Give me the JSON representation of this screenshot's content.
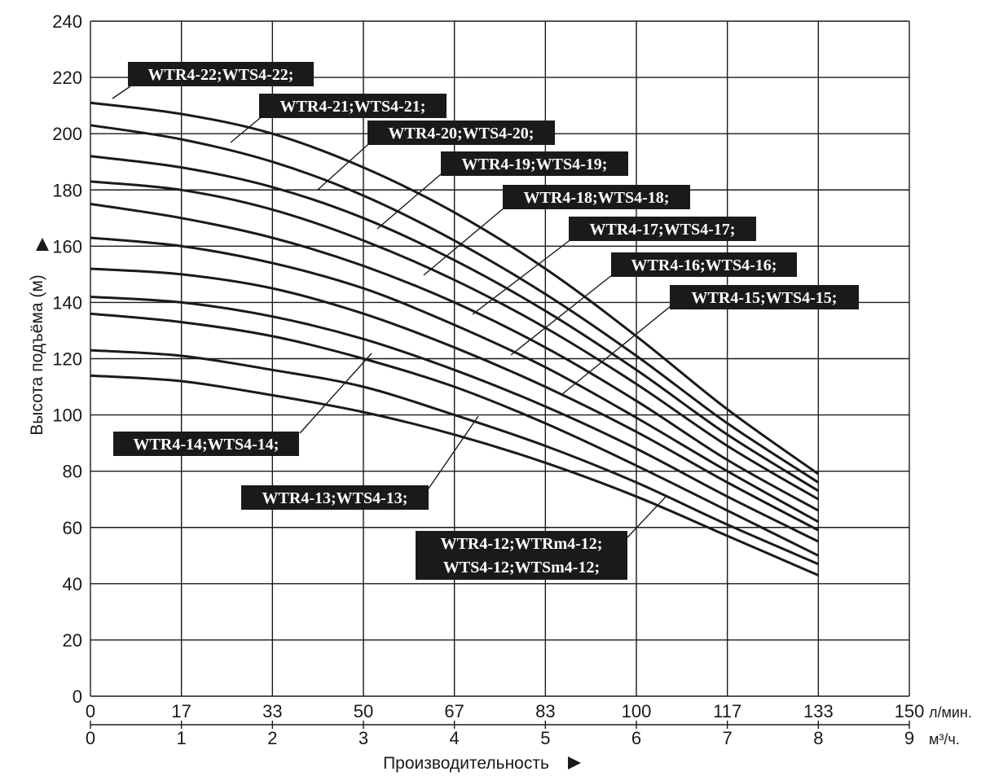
{
  "chart_data": {
    "type": "line",
    "title": "",
    "ylabel": "Высота подъёма (м)",
    "xlabel": "Производительность",
    "ylim": [
      0,
      240
    ],
    "y_ticks": [
      "0",
      "20",
      "40",
      "60",
      "80",
      "100",
      "120",
      "140",
      "160",
      "180",
      "200",
      "220",
      "240"
    ],
    "x_ticks_lmin": [
      "0",
      "17",
      "33",
      "50",
      "67",
      "83",
      "100",
      "117",
      "133",
      "150"
    ],
    "x_unit_lmin": "л/мин.",
    "x_ticks_m3h": [
      "0",
      "1",
      "2",
      "3",
      "4",
      "5",
      "6",
      "7",
      "8",
      "9"
    ],
    "x_unit_m3h": "м³/ч.",
    "xlim_m3h": [
      0,
      9
    ],
    "grid": true,
    "series": [
      {
        "name": "WTR4-22;WTS4-22;",
        "label_lines": [
          "WTR4-22;WTS4-22;"
        ],
        "x": [
          0,
          1,
          2,
          3,
          4,
          5,
          6,
          7,
          8
        ],
        "y": [
          211,
          207,
          200,
          188,
          172,
          152,
          128,
          102,
          79
        ]
      },
      {
        "name": "WTR4-21;WTS4-21;",
        "label_lines": [
          "WTR4-21;WTS4-21;"
        ],
        "x": [
          0,
          1,
          2,
          3,
          4,
          5,
          6,
          7,
          8
        ],
        "y": [
          203,
          198,
          190,
          178,
          162,
          143,
          121,
          97,
          76
        ]
      },
      {
        "name": "WTR4-20;WTS4-20;",
        "label_lines": [
          "WTR4-20;WTS4-20;"
        ],
        "x": [
          0,
          1,
          2,
          3,
          4,
          5,
          6,
          7,
          8
        ],
        "y": [
          192,
          188,
          181,
          170,
          155,
          137,
          116,
          93,
          73
        ]
      },
      {
        "name": "WTR4-19;WTS4-19;",
        "label_lines": [
          "WTR4-19;WTS4-19;"
        ],
        "x": [
          0,
          1,
          2,
          3,
          4,
          5,
          6,
          7,
          8
        ],
        "y": [
          183,
          180,
          173,
          162,
          148,
          131,
          111,
          89,
          70
        ]
      },
      {
        "name": "WTR4-18;WTS4-18;",
        "label_lines": [
          "WTR4-18;WTS4-18;"
        ],
        "x": [
          0,
          1,
          2,
          3,
          4,
          5,
          6,
          7,
          8
        ],
        "y": [
          175,
          170,
          163,
          153,
          140,
          124,
          105,
          84,
          66
        ]
      },
      {
        "name": "WTR4-17;WTS4-17;",
        "label_lines": [
          "WTR4-17;WTS4-17;"
        ],
        "x": [
          0,
          1,
          2,
          3,
          4,
          5,
          6,
          7,
          8
        ],
        "y": [
          163,
          160,
          154,
          145,
          132,
          117,
          99,
          80,
          62
        ]
      },
      {
        "name": "WTR4-16;WTS4-16;",
        "label_lines": [
          "WTR4-16;WTS4-16;"
        ],
        "x": [
          0,
          1,
          2,
          3,
          4,
          5,
          6,
          7,
          8
        ],
        "y": [
          152,
          150,
          145,
          136,
          124,
          110,
          94,
          76,
          59
        ]
      },
      {
        "name": "WTR4-15;WTS4-15;",
        "label_lines": [
          "WTR4-15;WTS4-15;"
        ],
        "x": [
          0,
          1,
          2,
          3,
          4,
          5,
          6,
          7,
          8
        ],
        "y": [
          142,
          140,
          135,
          127,
          116,
          103,
          88,
          71,
          55
        ]
      },
      {
        "name": "WTR4-14;WTS4-14;",
        "label_lines": [
          "WTR4-14;WTS4-14;"
        ],
        "x": [
          0,
          1,
          2,
          3,
          4,
          5,
          6,
          7,
          8
        ],
        "y": [
          136,
          133,
          128,
          120,
          110,
          97,
          82,
          66,
          50
        ]
      },
      {
        "name": "WTR4-13;WTS4-13;",
        "label_lines": [
          "WTR4-13;WTS4-13;"
        ],
        "x": [
          0,
          1,
          2,
          3,
          4,
          5,
          6,
          7,
          8
        ],
        "y": [
          123,
          121,
          116,
          110,
          100,
          89,
          76,
          61,
          47
        ]
      },
      {
        "name": "WTR4-12;WTRm4-12;WTS4-12;WTSm4-12;",
        "label_lines": [
          "WTR4-12;WTRm4-12;",
          "WTS4-12;WTSm4-12;"
        ],
        "x": [
          0,
          1,
          2,
          3,
          4,
          5,
          6,
          7,
          8
        ],
        "y": [
          114,
          112,
          107,
          101,
          93,
          83,
          71,
          57,
          43
        ]
      }
    ]
  }
}
